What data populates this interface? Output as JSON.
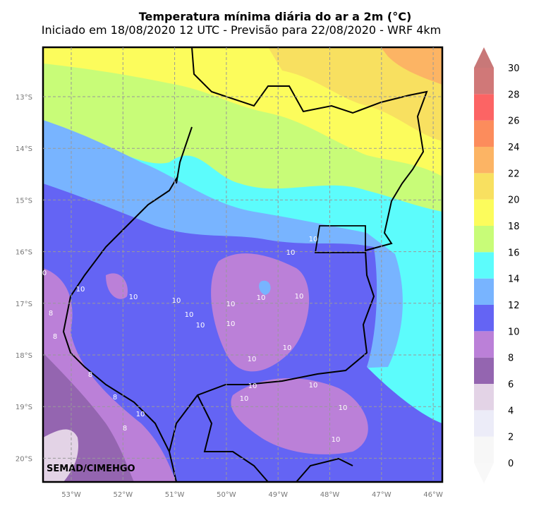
{
  "header": {
    "title": "Temperatura mínima diária do ar a 2m (°C)",
    "subtitle": "Iniciado em 18/08/2020 12 UTC - Previsão para 22/08/2020 - WRF 4km"
  },
  "map": {
    "lat_labels": [
      "13°S",
      "14°S",
      "15°S",
      "16°S",
      "17°S",
      "18°S",
      "19°S",
      "20°S"
    ],
    "lon_labels": [
      "53°W",
      "52°W",
      "51°W",
      "50°W",
      "49°W",
      "48°W",
      "47°W",
      "46°W"
    ],
    "credit": "SEMAD/CIMEHGO",
    "contour_labels": [
      "10",
      "10",
      "10",
      "10",
      "10",
      "10",
      "10",
      "10",
      "10",
      "10",
      "10",
      "10",
      "10",
      "10",
      "10",
      "10",
      "10",
      "10",
      "10",
      "8",
      "8",
      "8",
      "8",
      "8",
      "0"
    ]
  },
  "colorbar": {
    "ticks": [
      0,
      2,
      4,
      6,
      8,
      10,
      12,
      14,
      16,
      18,
      20,
      22,
      24,
      26,
      28,
      30
    ],
    "colors": [
      "#f7f7f7",
      "#ececf8",
      "#e3d3e6",
      "#9465b0",
      "#bb80d8",
      "#6464f4",
      "#78b4ff",
      "#5cfcfc",
      "#c8fc78",
      "#fcfc5c",
      "#f8e060",
      "#fcb464",
      "#fc8c5c",
      "#fc6464",
      "#d07878"
    ],
    "under_color": "#f8f8f8",
    "over_color": "#c87878"
  }
}
